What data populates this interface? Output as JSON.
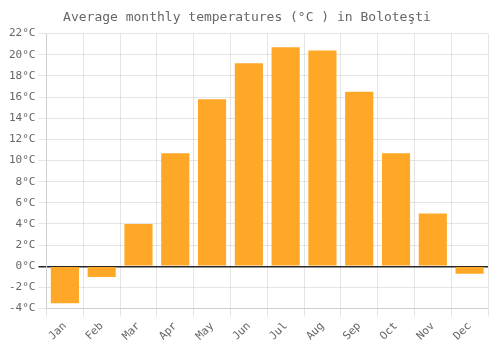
{
  "chart_data": {
    "type": "bar",
    "title": "Average monthly temperatures (°C ) in Boloteşti",
    "categories": [
      "Jan",
      "Feb",
      "Mar",
      "Apr",
      "May",
      "Jun",
      "Jul",
      "Aug",
      "Sep",
      "Oct",
      "Nov",
      "Dec"
    ],
    "values": [
      -3.5,
      -1.0,
      4.0,
      10.7,
      15.8,
      19.2,
      20.7,
      20.4,
      16.5,
      10.7,
      5.0,
      -0.7
    ],
    "color": "#FFA726",
    "ylim": [
      -4,
      22
    ],
    "yticks": [
      {
        "value": -4,
        "label": "-4°C"
      },
      {
        "value": -2,
        "label": "-2°C"
      },
      {
        "value": 0,
        "label": "0°C"
      },
      {
        "value": 2,
        "label": "2°C"
      },
      {
        "value": 4,
        "label": "4°C"
      },
      {
        "value": 6,
        "label": "6°C"
      },
      {
        "value": 8,
        "label": "8°C"
      },
      {
        "value": 10,
        "label": "10°C"
      },
      {
        "value": 12,
        "label": "12°C"
      },
      {
        "value": 14,
        "label": "14°C"
      },
      {
        "value": 16,
        "label": "16°C"
      },
      {
        "value": 18,
        "label": "18°C"
      },
      {
        "value": 20,
        "label": "20°C"
      },
      {
        "value": 22,
        "label": "22°C"
      }
    ],
    "grid": true
  }
}
